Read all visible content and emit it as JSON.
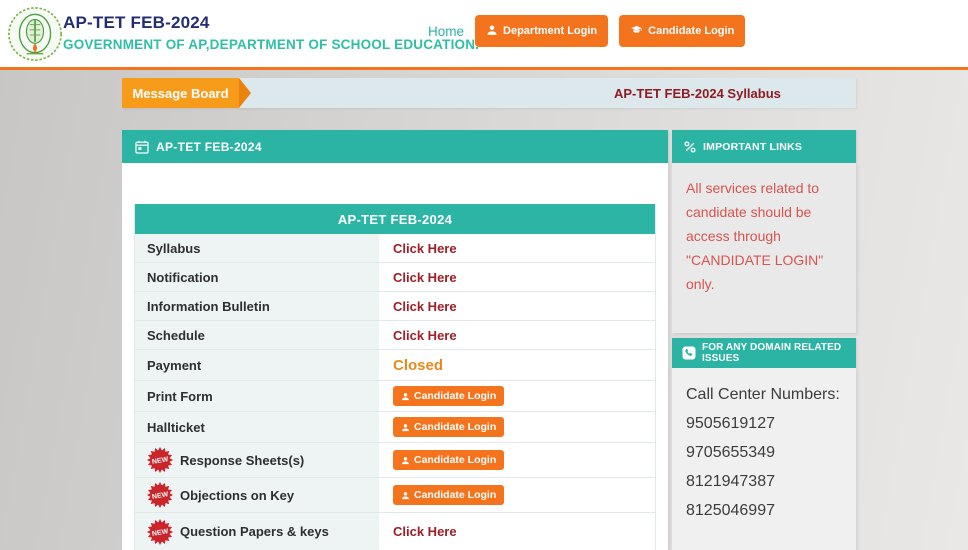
{
  "header": {
    "title": "AP-TET FEB-2024",
    "subtitle": "GOVERNMENT OF AP,DEPARTMENT OF SCHOOL EDUCATION.",
    "nav": {
      "home_label": "Home",
      "department_login_label": "Department Login",
      "candidate_login_label": "Candidate Login"
    }
  },
  "message_board": {
    "label": "Message Board",
    "marquee_text": "AP-TET FEB-2024 Syllabus"
  },
  "sections": {
    "left_bar_title": "AP-TET FEB-2024",
    "right_bar_title": "IMPORTANT LINKS"
  },
  "table": {
    "title": "AP-TET FEB-2024",
    "new_badge_label": "NEW",
    "rows": [
      {
        "label": "Syllabus",
        "type": "link",
        "action_text": "Click Here",
        "is_new": false
      },
      {
        "label": "Notification",
        "type": "link",
        "action_text": "Click Here",
        "is_new": false
      },
      {
        "label": "Information Bulletin",
        "type": "link",
        "action_text": "Click Here",
        "is_new": false
      },
      {
        "label": "Schedule",
        "type": "link",
        "action_text": "Click Here",
        "is_new": false
      },
      {
        "label": "Payment",
        "type": "status",
        "action_text": "Closed",
        "is_new": false
      },
      {
        "label": "Print Form",
        "type": "button",
        "action_text": "Candidate Login",
        "is_new": false
      },
      {
        "label": "Hallticket",
        "type": "button",
        "action_text": "Candidate Login",
        "is_new": false
      },
      {
        "label": "Response Sheets(s)",
        "type": "button",
        "action_text": "Candidate Login",
        "is_new": true
      },
      {
        "label": "Objections on Key",
        "type": "button",
        "action_text": "Candidate Login",
        "is_new": true
      },
      {
        "label": "Question Papers & keys",
        "type": "link",
        "action_text": "Click Here",
        "is_new": true
      }
    ]
  },
  "sidebar": {
    "notice_text": "All services related to candidate should be access through \"CANDIDATE LOGIN\" only.",
    "domain_bar_title": "FOR ANY DOMAIN RELATED ISSUES",
    "call_center_label": "Call Center Numbers:",
    "call_center_numbers": [
      "9505619127",
      "9705655349",
      "8121947387",
      "8125046997"
    ]
  },
  "colors": {
    "teal": "#2bb3a3",
    "tealTable": "#2cb5a5",
    "orange": "#f4731d",
    "orangeRibbon": "#f79b1b",
    "orangeArrow": "#ea820e",
    "linkRed": "#9e1f27",
    "marqueeRed": "#8e1c22",
    "noticeRed": "#d9534f",
    "closedOrange": "#e8891f",
    "navy": "#232e72",
    "subtitleTeal": "#2ebfa5",
    "badgeRed": "#c9252b"
  }
}
